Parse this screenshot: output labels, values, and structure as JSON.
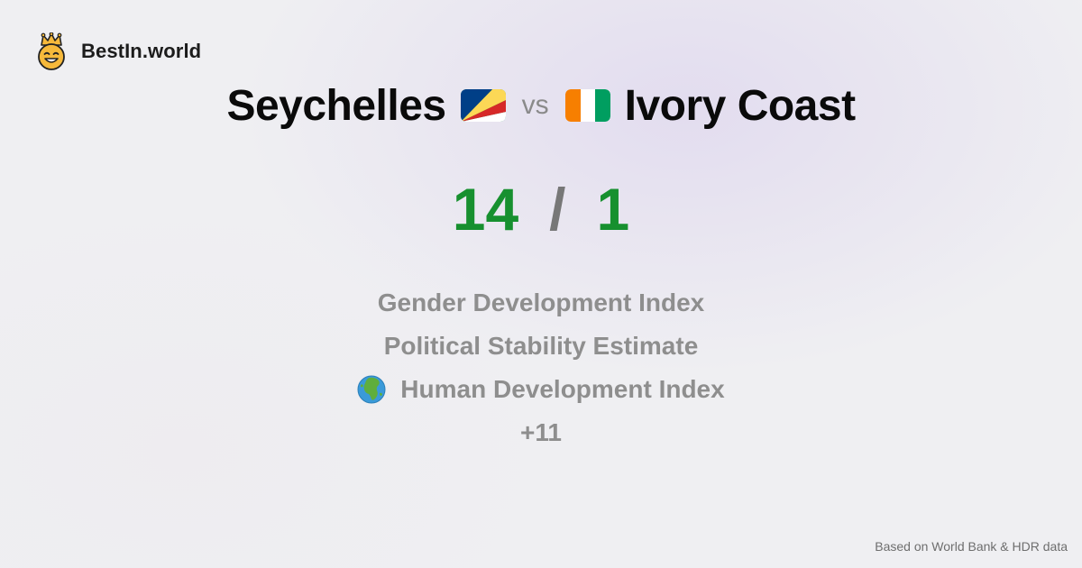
{
  "brand": {
    "name": "BestIn.world",
    "logo_icon": "crown-smiley-icon"
  },
  "comparison": {
    "left_country": "Seychelles",
    "left_flag_icon": "seychelles-flag-icon",
    "vs_label": "vs",
    "right_country": "Ivory Coast",
    "right_flag_icon": "ivory-coast-flag-icon"
  },
  "score": {
    "left": "14",
    "separator": "/",
    "right": "1"
  },
  "metrics": [
    {
      "label": "Gender Development Index"
    },
    {
      "label": "Political Stability Estimate"
    },
    {
      "label": "Human Development Index",
      "icon": "globe-africa-icon"
    },
    {
      "label": "+11"
    }
  ],
  "footer": {
    "source_note": "Based on World Bank & HDR data"
  },
  "colors": {
    "score_green": "#17902f",
    "muted_text": "#8e8e8e",
    "logo_yellow": "#f6b93b"
  }
}
